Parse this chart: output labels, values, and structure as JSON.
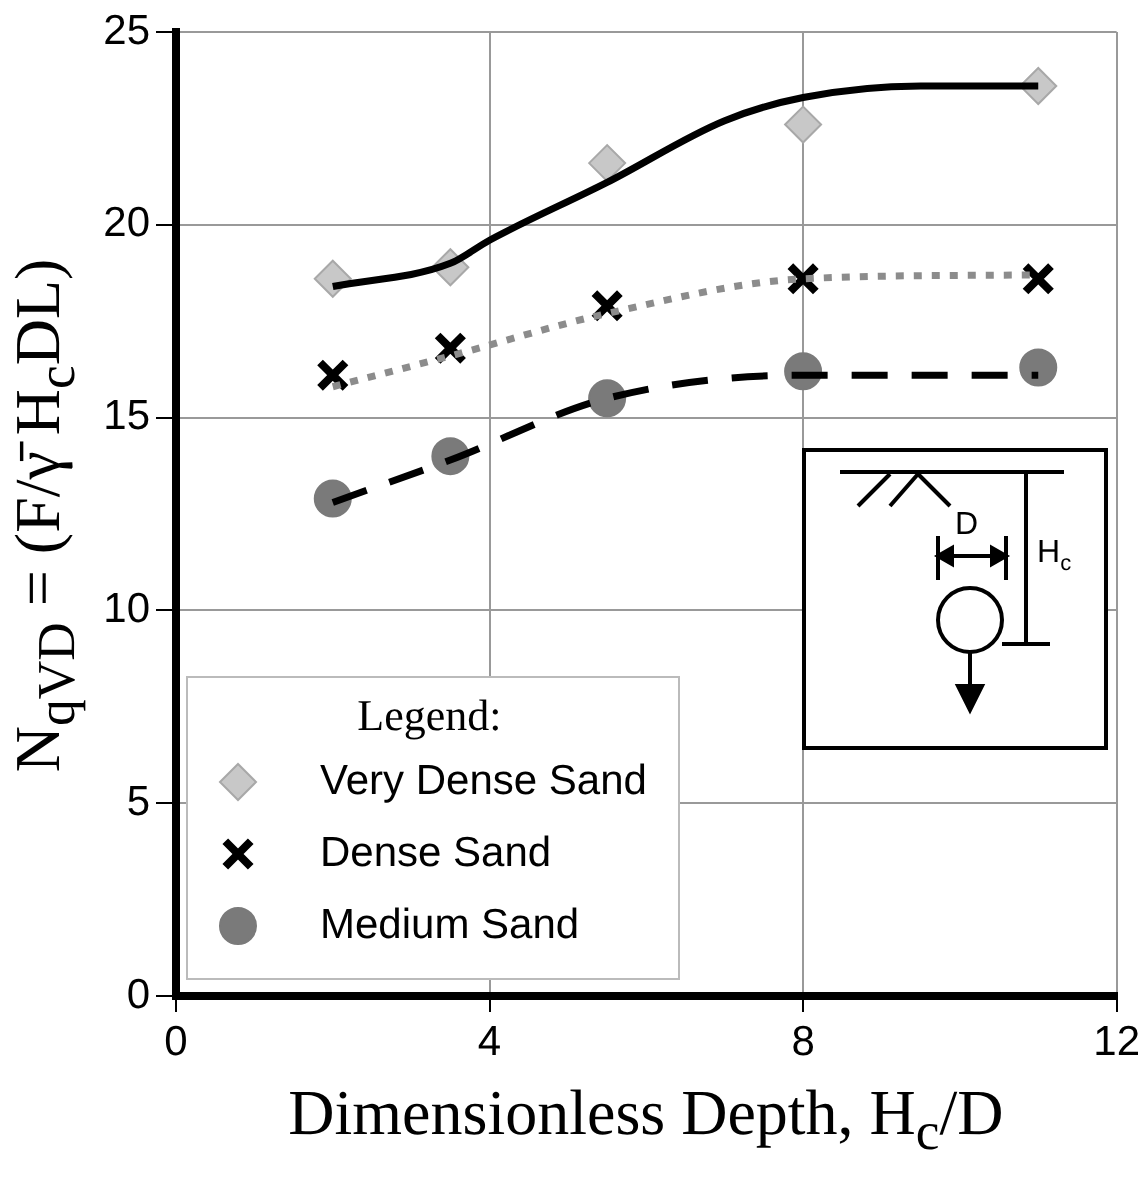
{
  "chart_data": {
    "type": "scatter",
    "xlabel": "Dimensionless Depth, H$_{c}$/D",
    "ylabel": "N$_{qVD}$ = (F/γ̄ H$_{c}$DL)",
    "legend_title": "Legend:",
    "annotations": [
      "D",
      "H$_{c}$"
    ],
    "xlim": [
      0,
      12
    ],
    "xticks": [
      0,
      4,
      8,
      12
    ],
    "ylim": [
      0,
      25
    ],
    "yticks": [
      0,
      5,
      10,
      15,
      20,
      25
    ],
    "grid": true,
    "legend": "bottom left",
    "series": [
      {
        "name": "Very Dense Sand",
        "marker": "diamond",
        "color": "#c8c8c8",
        "x": [
          2,
          3.5,
          5.5,
          8,
          11
        ],
        "values": [
          18.6,
          18.9,
          21.6,
          22.6,
          23.6
        ]
      },
      {
        "name": "Dense Sand",
        "marker": "cross",
        "color": "#000000",
        "x": [
          2,
          3.5,
          5.5,
          8,
          11
        ],
        "values": [
          16.1,
          16.8,
          17.9,
          18.6,
          18.6
        ]
      },
      {
        "name": "Medium Sand",
        "marker": "circle",
        "color": "#7a7a7a",
        "x": [
          2,
          3.5,
          5.5,
          8,
          11
        ],
        "values": [
          12.9,
          14.0,
          15.5,
          16.2,
          16.3
        ]
      },
      {
        "type": "line",
        "marker": "none",
        "line_style": "solid",
        "color": "#000000",
        "x": [
          2,
          3.5,
          4,
          5.5,
          7,
          8,
          9.5,
          11
        ],
        "values": [
          18.4,
          19.0,
          19.6,
          21.1,
          22.7,
          23.3,
          23.6,
          23.6
        ]
      },
      {
        "type": "line",
        "marker": "none",
        "line_style": "dotted",
        "color": "#8c8c8c",
        "x": [
          2,
          3.5,
          5.5,
          8,
          11
        ],
        "values": [
          15.8,
          16.6,
          17.7,
          18.6,
          18.7
        ]
      },
      {
        "type": "line",
        "marker": "none",
        "line_style": "dashed",
        "color": "#000000",
        "x": [
          2,
          3.5,
          5.5,
          8,
          11
        ],
        "values": [
          12.8,
          13.9,
          15.5,
          16.1,
          16.1
        ]
      }
    ]
  }
}
